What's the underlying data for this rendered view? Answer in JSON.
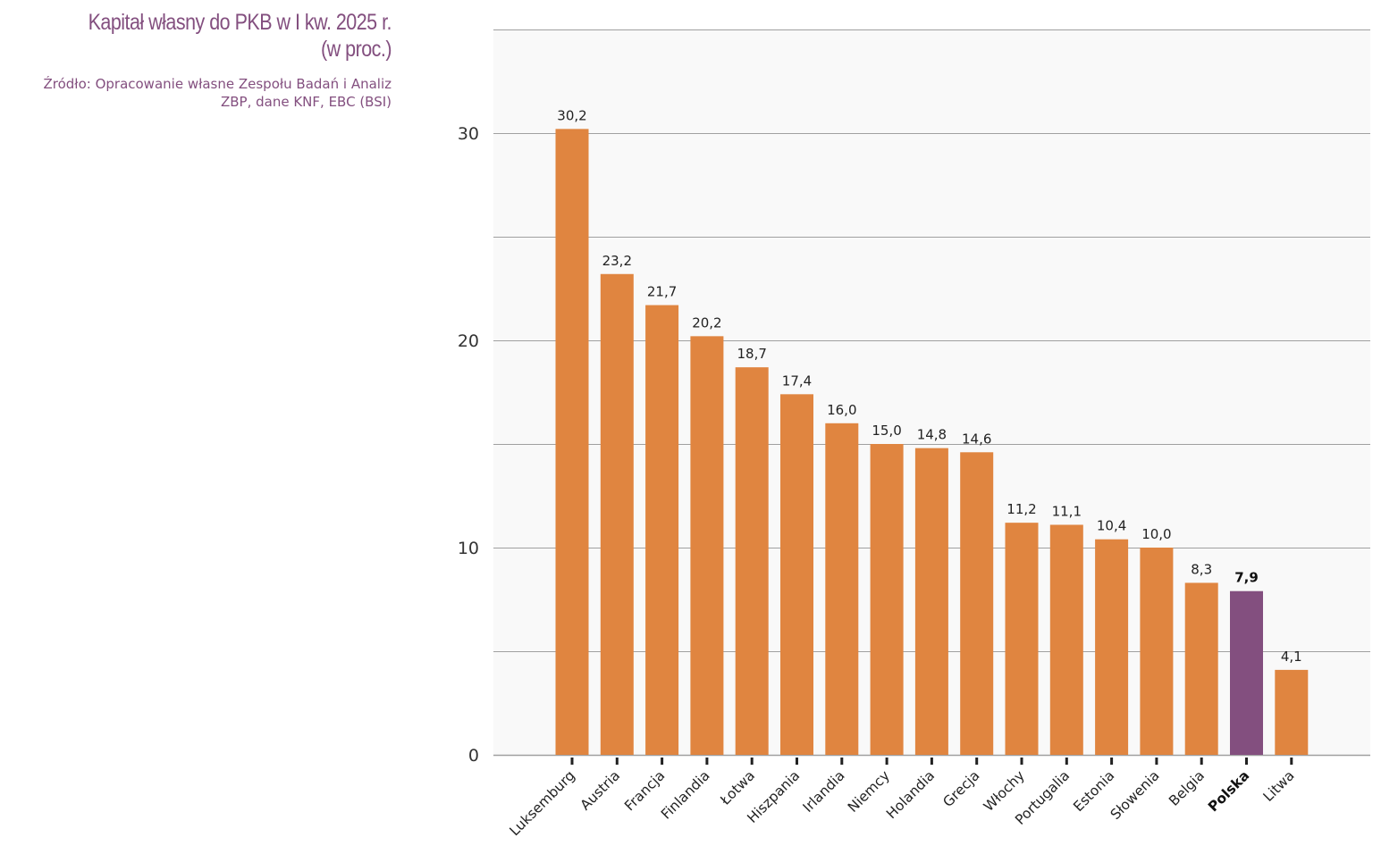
{
  "chart_data": {
    "type": "bar",
    "title": "Kapitał własny do PKB w I kw. 2025 r.\n(w proc.)",
    "source": "Źródło: Opracowanie własne Zespołu Badań i Analiz\nZBP, dane KNF, EBC (BSI)",
    "xlabel": "",
    "ylabel": "",
    "ylim": [
      0,
      35
    ],
    "yticks": [
      0,
      10,
      20,
      30
    ],
    "gridlines": [
      0,
      5,
      10,
      15,
      20,
      25,
      30,
      35
    ],
    "grid": true,
    "decimal_separator": ",",
    "categories": [
      "Luksemburg",
      "Austria",
      "Francja",
      "Finlandia",
      "Łotwa",
      "Hiszpania",
      "Irlandia",
      "Niemcy",
      "Holandia",
      "Grecja",
      "Włochy",
      "Portugalia",
      "Estonia",
      "Słowenia",
      "Belgia",
      "Polska",
      "Litwa"
    ],
    "values": [
      30.2,
      23.2,
      21.7,
      20.2,
      18.7,
      17.4,
      16.0,
      15.0,
      14.8,
      14.6,
      11.2,
      11.1,
      10.4,
      10.0,
      8.3,
      7.9,
      4.1
    ],
    "value_labels": [
      "30,2",
      "23,2",
      "21,7",
      "20,2",
      "18,7",
      "17,4",
      "16,0",
      "15,0",
      "14,8",
      "14,6",
      "11,2",
      "11,1",
      "10,4",
      "10,0",
      "8,3",
      "7,9",
      "4,1"
    ],
    "highlight": "Polska",
    "colors": {
      "bar": "#e08540",
      "highlight": "#834f7f",
      "title": "#834f7f",
      "plot_background": "#f9f9f9",
      "gridline": "#a0a0a0"
    }
  }
}
